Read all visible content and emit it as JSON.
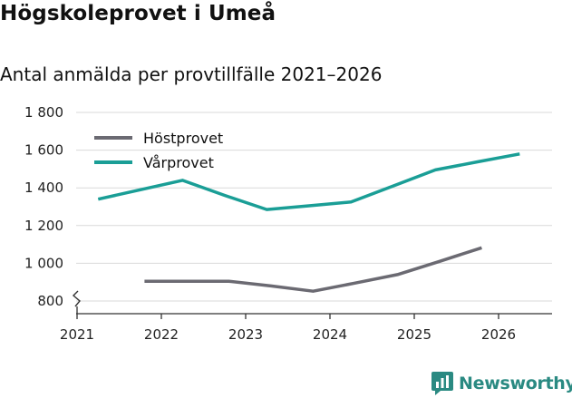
{
  "chart_data": {
    "type": "line",
    "title": "Högskoleprovet i Umeå",
    "subtitle": "Antal anmälda per provtillfälle 2021–2026",
    "xlabel": "",
    "ylabel": "",
    "x_ticks": [
      "2021",
      "2022",
      "2023",
      "2024",
      "2025",
      "2026"
    ],
    "y_ticks": [
      "800",
      "1 000",
      "1 200",
      "1 400",
      "1 600",
      "1 800"
    ],
    "y_tick_values": [
      800,
      1000,
      1200,
      1400,
      1600,
      1800
    ],
    "ylim": [
      800,
      1800
    ],
    "xlim": [
      2021,
      2026.6
    ],
    "axis_break": true,
    "grid": true,
    "legend_position": "top-left",
    "series": [
      {
        "name": "Höstprovet",
        "color": "#6b6a72",
        "x": [
          2021.8,
          2022.3,
          2022.8,
          2023.3,
          2023.8,
          2024.3,
          2024.8,
          2025.3,
          2025.8
        ],
        "y": [
          905,
          905,
          905,
          880,
          852,
          895,
          940,
          1010,
          1082
        ]
      },
      {
        "name": "Vårprovet",
        "color": "#1a9e96",
        "x": [
          2021.25,
          2021.75,
          2022.25,
          2022.75,
          2023.25,
          2023.75,
          2024.25,
          2024.75,
          2025.25,
          2025.75,
          2026.25
        ],
        "y": [
          1340,
          1390,
          1440,
          1360,
          1285,
          1305,
          1325,
          1410,
          1495,
          1538,
          1580
        ]
      }
    ]
  },
  "brand": {
    "name": "Newsworthy",
    "color": "#2a8a82",
    "icon": "bar-chart-icon"
  }
}
